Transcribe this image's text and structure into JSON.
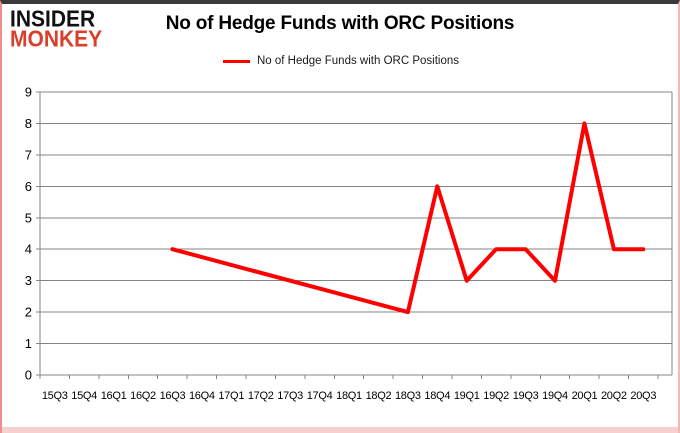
{
  "branding": {
    "logo_line1": "INSIDER",
    "logo_line2": "MONKEY",
    "logo_color1": "#111111",
    "logo_color2": "#d9402c"
  },
  "header": {
    "title": "No of Hedge Funds with ORC Positions"
  },
  "legend": {
    "label": "No of Hedge Funds with ORC Positions",
    "swatch_color": "#ff0000"
  },
  "chart_data": {
    "type": "line",
    "title": "No of Hedge Funds with ORC Positions",
    "categories": [
      "15Q3",
      "15Q4",
      "16Q1",
      "16Q2",
      "16Q3",
      "16Q4",
      "17Q1",
      "17Q2",
      "17Q3",
      "17Q4",
      "18Q1",
      "18Q2",
      "18Q3",
      "18Q4",
      "19Q1",
      "19Q2",
      "19Q3",
      "19Q4",
      "20Q1",
      "20Q2",
      "20Q3"
    ],
    "series": [
      {
        "name": "No of Hedge Funds with ORC Positions",
        "color": "#ff0000",
        "values": [
          null,
          null,
          null,
          null,
          4,
          null,
          null,
          null,
          null,
          null,
          null,
          null,
          2,
          6,
          3,
          4,
          4,
          3,
          8,
          4,
          4
        ]
      }
    ],
    "ylim": [
      0,
      9
    ],
    "yticks": [
      0,
      1,
      2,
      3,
      4,
      5,
      6,
      7,
      8,
      9
    ],
    "grid": "horizontal",
    "gap_behavior": "connect",
    "legend_position": "top",
    "colors": {
      "gridline": "#848484",
      "axis": "#848484",
      "tick_label": "#000000",
      "background": "#ffffff"
    }
  }
}
